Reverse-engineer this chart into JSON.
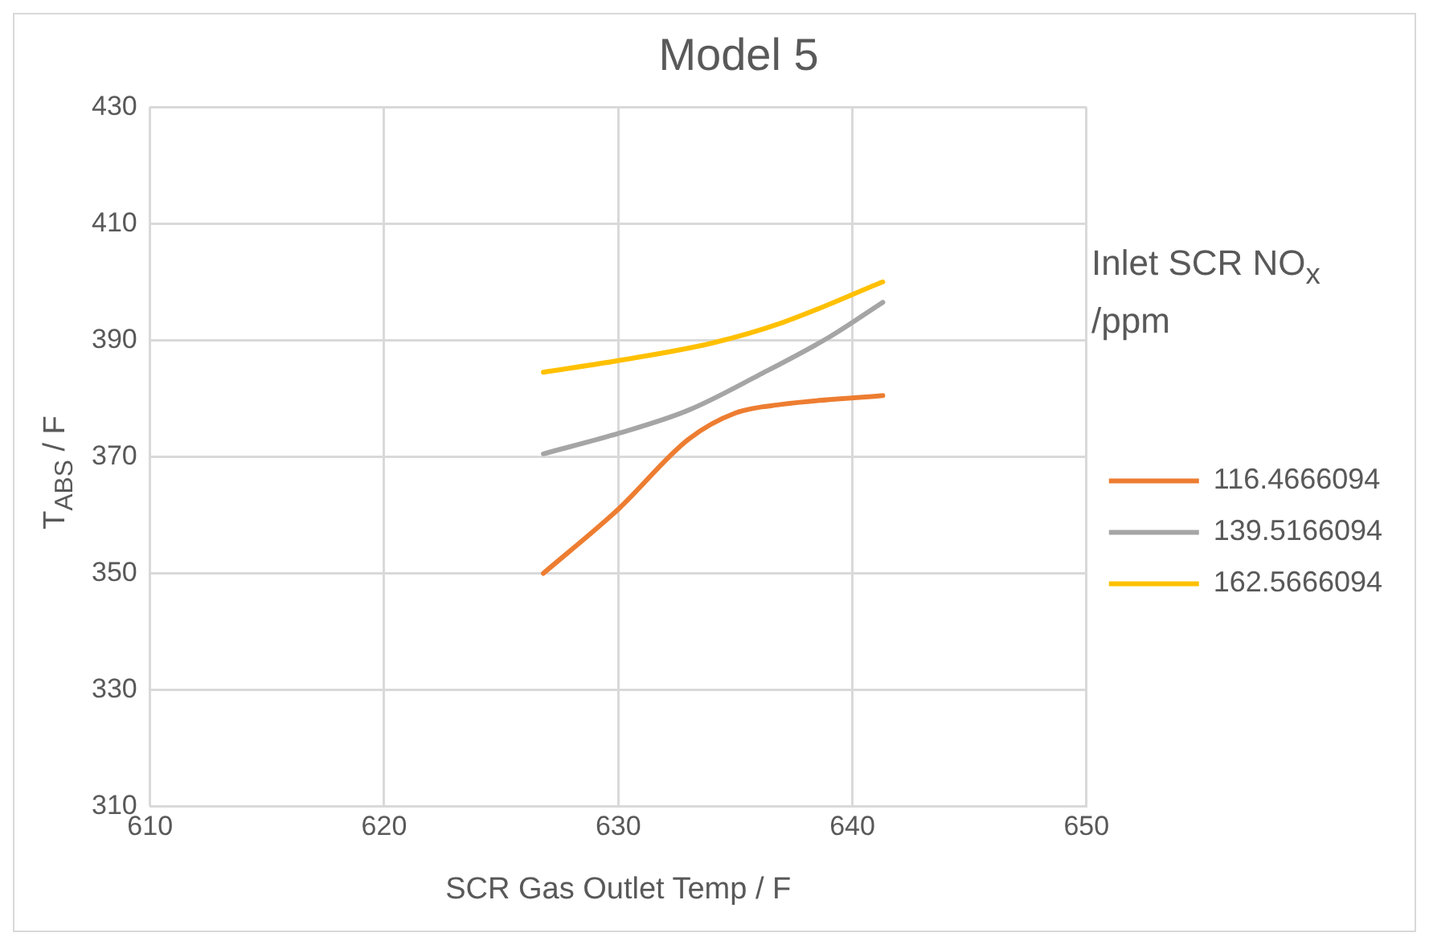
{
  "chart_data": {
    "type": "line",
    "title": "Model 5",
    "xlabel": "SCR Gas Outlet Temp / F",
    "ylabel": "T$_{ABS}$ / F",
    "legend_title": "Inlet SCR NO$_{x}$ /ppm",
    "xlim": [
      610,
      650
    ],
    "xticks": [
      610,
      620,
      630,
      640,
      650
    ],
    "ylim": [
      310,
      430
    ],
    "yticks": [
      310,
      330,
      350,
      370,
      390,
      410,
      430
    ],
    "grid": true,
    "legend": "right",
    "marker": "none",
    "line_style": "solid",
    "series": [
      {
        "name": "116.4666094",
        "color": "#ed7d31",
        "x": [
          626.8,
          630,
          633,
          635,
          637,
          641.3
        ],
        "values": [
          350,
          361,
          373,
          377.5,
          379,
          380.5
        ]
      },
      {
        "name": "139.5166094",
        "color": "#a5a5a5",
        "x": [
          626.8,
          630,
          633,
          636,
          639,
          641.3
        ],
        "values": [
          370.5,
          374,
          378,
          384,
          390.5,
          396.5
        ]
      },
      {
        "name": "162.5666094",
        "color": "#ffc000",
        "x": [
          626.8,
          630,
          634,
          637,
          641.3
        ],
        "values": [
          384.5,
          386.5,
          389.5,
          393,
          400
        ]
      }
    ]
  }
}
